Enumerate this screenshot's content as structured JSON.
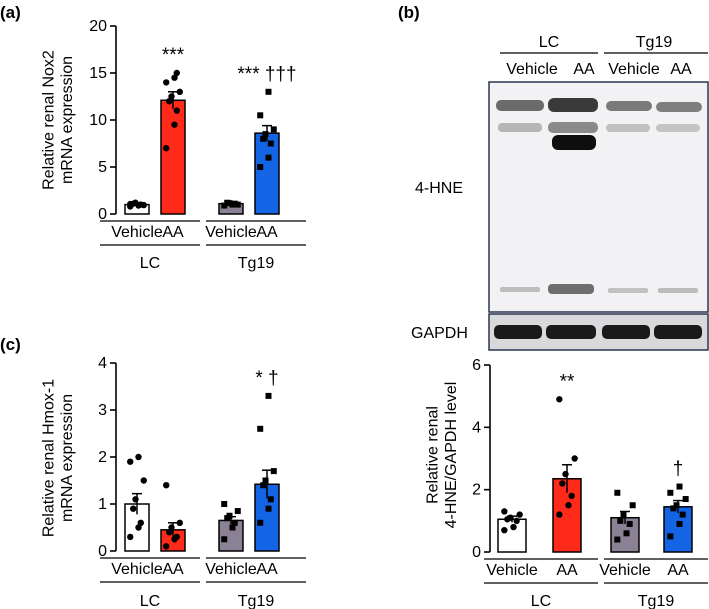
{
  "panels": {
    "a": {
      "label": "(a)"
    },
    "b": {
      "label": "(b)"
    },
    "c": {
      "label": "(c)"
    }
  },
  "blot": {
    "protein_label": "4-HNE",
    "loading_label": "GAPDH",
    "groups": [
      "LC",
      "Tg19"
    ],
    "lanes": [
      "Vehicle",
      "AA",
      "Vehicle",
      "AA"
    ]
  },
  "chart_data": [
    {
      "id": "a",
      "type": "bar",
      "ylabel": [
        "Relative renal Nox2",
        "mRNA expression"
      ],
      "ylim": [
        0,
        20
      ],
      "yticks": [
        0,
        5,
        10,
        15,
        20
      ],
      "categories": [
        "Vehicle",
        "AA",
        "Vehicle",
        "AA"
      ],
      "groups": [
        "LC",
        "Tg19"
      ],
      "values": [
        1.0,
        12.1,
        1.1,
        8.6
      ],
      "sem": [
        0.1,
        0.9,
        0.1,
        0.8
      ],
      "colors": [
        "#ffffff",
        "#ff2a1a",
        "#8a8294",
        "#1464e6"
      ],
      "annotations": [
        "",
        "***",
        "",
        "*** †††"
      ],
      "points": [
        [
          0.8,
          0.9,
          1.0,
          1.1,
          1.2,
          0.95,
          1.05
        ],
        [
          7.0,
          9.5,
          11.0,
          12.0,
          12.5,
          13.0,
          14.0,
          14.5,
          15.0
        ],
        [
          0.9,
          1.0,
          1.1,
          1.2,
          1.15,
          1.0
        ],
        [
          5.0,
          6.0,
          7.5,
          8.0,
          8.5,
          9.0,
          10.5,
          13.0
        ]
      ]
    },
    {
      "id": "c",
      "type": "bar",
      "ylabel": [
        "Relative renal Hmox-1",
        "mRNA expression"
      ],
      "ylim": [
        0,
        4
      ],
      "yticks": [
        0,
        1,
        2,
        3,
        4
      ],
      "categories": [
        "Vehicle",
        "AA",
        "Vehicle",
        "AA"
      ],
      "groups": [
        "LC",
        "Tg19"
      ],
      "values": [
        1.0,
        0.45,
        0.65,
        1.42
      ],
      "sem": [
        0.22,
        0.15,
        0.08,
        0.3
      ],
      "colors": [
        "#ffffff",
        "#ff2a1a",
        "#8a8294",
        "#1464e6"
      ],
      "annotations": [
        "",
        "",
        "",
        "* †"
      ],
      "points": [
        [
          0.3,
          0.5,
          0.6,
          0.9,
          1.1,
          1.5,
          1.9,
          2.0
        ],
        [
          0.1,
          0.25,
          0.3,
          0.4,
          0.5,
          0.6,
          1.4
        ],
        [
          0.25,
          0.5,
          0.6,
          0.7,
          0.75,
          0.85,
          1.0
        ],
        [
          0.6,
          0.9,
          1.1,
          1.4,
          1.5,
          1.7,
          2.6,
          3.3
        ]
      ]
    },
    {
      "id": "b-quant",
      "type": "bar",
      "ylabel": [
        "Relative renal",
        "4-HNE/GAPDH level"
      ],
      "ylim": [
        0,
        6
      ],
      "yticks": [
        0,
        2,
        4,
        6
      ],
      "categories": [
        "Vehicle",
        "AA",
        "Vehicle",
        "AA"
      ],
      "groups": [
        "LC",
        "Tg19"
      ],
      "values": [
        1.05,
        2.35,
        1.1,
        1.45
      ],
      "sem": [
        0.1,
        0.45,
        0.2,
        0.2
      ],
      "colors": [
        "#ffffff",
        "#ff2a1a",
        "#8a8294",
        "#1464e6"
      ],
      "annotations": [
        "",
        "**",
        "",
        "†"
      ],
      "points": [
        [
          0.7,
          0.8,
          1.0,
          1.05,
          1.1,
          1.2,
          1.3
        ],
        [
          1.2,
          1.5,
          1.8,
          2.2,
          2.5,
          3.0,
          4.9
        ],
        [
          0.4,
          0.6,
          0.9,
          1.0,
          1.2,
          1.5,
          1.9
        ],
        [
          0.5,
          0.9,
          1.2,
          1.4,
          1.5,
          1.7,
          1.9,
          2.1
        ]
      ]
    }
  ]
}
